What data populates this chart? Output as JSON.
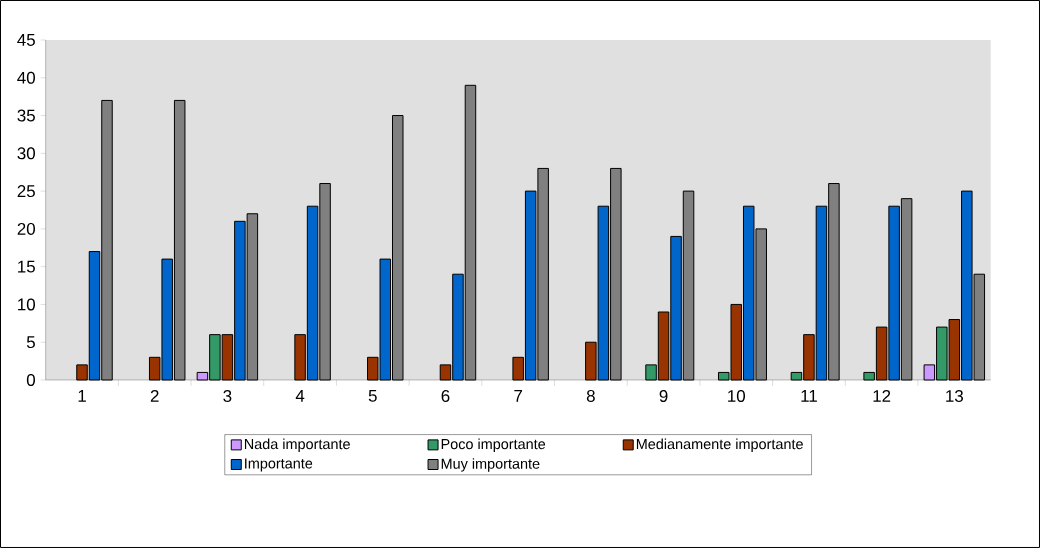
{
  "chart_data": {
    "type": "bar",
    "categories": [
      "1",
      "2",
      "3",
      "4",
      "5",
      "6",
      "7",
      "8",
      "9",
      "10",
      "11",
      "12",
      "13"
    ],
    "series": [
      {
        "name": "Nada importante",
        "color": "#cc99ff",
        "values": [
          null,
          null,
          1,
          null,
          null,
          null,
          null,
          null,
          null,
          null,
          null,
          null,
          2
        ]
      },
      {
        "name": "Poco importante",
        "color": "#339966",
        "values": [
          null,
          null,
          6,
          null,
          null,
          null,
          null,
          null,
          2,
          1,
          1,
          1,
          7
        ]
      },
      {
        "name": "Medianamente importante",
        "color": "#993300",
        "values": [
          2,
          3,
          6,
          6,
          3,
          2,
          3,
          5,
          9,
          10,
          6,
          7,
          8
        ]
      },
      {
        "name": "Importante",
        "color": "#0066cc",
        "values": [
          17,
          16,
          21,
          23,
          16,
          14,
          25,
          23,
          19,
          23,
          23,
          23,
          25
        ]
      },
      {
        "name": "Muy importante",
        "color": "#808080",
        "values": [
          37,
          37,
          22,
          26,
          35,
          39,
          28,
          28,
          25,
          20,
          26,
          24,
          14
        ]
      }
    ],
    "ylim": [
      0,
      45
    ],
    "yticks": [
      0,
      5,
      10,
      15,
      20,
      25,
      30,
      35,
      40,
      45
    ],
    "legend": "bottom"
  }
}
